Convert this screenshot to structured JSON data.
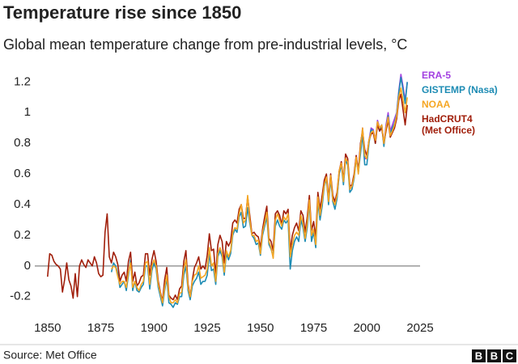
{
  "chart_data": {
    "type": "line",
    "title": "Temperature rise since 1850",
    "subtitle": "Global mean temperature change from pre-industrial levels, °C",
    "source": "Source: Met Office",
    "logo": [
      "B",
      "B",
      "C"
    ],
    "xlim": [
      1844,
      2025
    ],
    "xticks": [
      1850,
      1875,
      1900,
      1925,
      1950,
      1975,
      2000,
      2025
    ],
    "ylim": [
      -0.27,
      1.26
    ],
    "yticks": [
      -0.2,
      0,
      0.2,
      0.4,
      0.6,
      0.8,
      1,
      1.2
    ],
    "grid": false,
    "x": [
      1850,
      1851,
      1852,
      1853,
      1854,
      1855,
      1856,
      1857,
      1858,
      1859,
      1860,
      1861,
      1862,
      1863,
      1864,
      1865,
      1866,
      1867,
      1868,
      1869,
      1870,
      1871,
      1872,
      1873,
      1874,
      1875,
      1876,
      1877,
      1878,
      1879,
      1880,
      1881,
      1882,
      1883,
      1884,
      1885,
      1886,
      1887,
      1888,
      1889,
      1890,
      1891,
      1892,
      1893,
      1894,
      1895,
      1896,
      1897,
      1898,
      1899,
      1900,
      1901,
      1902,
      1903,
      1904,
      1905,
      1906,
      1907,
      1908,
      1909,
      1910,
      1911,
      1912,
      1913,
      1914,
      1915,
      1916,
      1917,
      1918,
      1919,
      1920,
      1921,
      1922,
      1923,
      1924,
      1925,
      1926,
      1927,
      1928,
      1929,
      1930,
      1931,
      1932,
      1933,
      1934,
      1935,
      1936,
      1937,
      1938,
      1939,
      1940,
      1941,
      1942,
      1943,
      1944,
      1945,
      1946,
      1947,
      1948,
      1949,
      1950,
      1951,
      1952,
      1953,
      1954,
      1955,
      1956,
      1957,
      1958,
      1959,
      1960,
      1961,
      1962,
      1963,
      1964,
      1965,
      1966,
      1967,
      1968,
      1969,
      1970,
      1971,
      1972,
      1973,
      1974,
      1975,
      1976,
      1977,
      1978,
      1979,
      1980,
      1981,
      1982,
      1983,
      1984,
      1985,
      1986,
      1987,
      1988,
      1989,
      1990,
      1991,
      1992,
      1993,
      1994,
      1995,
      1996,
      1997,
      1998,
      1999,
      2000,
      2001,
      2002,
      2003,
      2004,
      2005,
      2006,
      2007,
      2008,
      2009,
      2010,
      2011,
      2012,
      2013,
      2014,
      2015,
      2016,
      2017,
      2018,
      2019
    ],
    "series": [
      {
        "name": "ERA-5",
        "color": "#a341e1",
        "values": [
          null,
          null,
          null,
          null,
          null,
          null,
          null,
          null,
          null,
          null,
          null,
          null,
          null,
          null,
          null,
          null,
          null,
          null,
          null,
          null,
          null,
          null,
          null,
          null,
          null,
          null,
          null,
          null,
          null,
          null,
          null,
          null,
          null,
          null,
          null,
          null,
          null,
          null,
          null,
          null,
          null,
          null,
          null,
          null,
          null,
          null,
          null,
          null,
          null,
          null,
          null,
          null,
          null,
          null,
          null,
          null,
          null,
          null,
          null,
          null,
          null,
          null,
          null,
          null,
          null,
          null,
          null,
          null,
          null,
          null,
          null,
          null,
          null,
          null,
          null,
          null,
          null,
          null,
          null,
          null,
          null,
          null,
          null,
          null,
          null,
          null,
          null,
          null,
          null,
          null,
          null,
          null,
          null,
          null,
          null,
          null,
          null,
          null,
          null,
          null,
          null,
          null,
          null,
          null,
          null,
          null,
          null,
          null,
          null,
          null,
          null,
          null,
          null,
          null,
          null,
          null,
          null,
          null,
          null,
          null,
          null,
          null,
          null,
          null,
          null,
          null,
          null,
          null,
          null,
          0.42,
          0.54,
          0.58,
          0.42,
          0.6,
          0.42,
          0.4,
          0.45,
          0.6,
          0.68,
          0.55,
          0.7,
          0.68,
          0.5,
          0.52,
          0.58,
          0.72,
          0.62,
          0.78,
          0.9,
          0.7,
          0.7,
          0.82,
          0.9,
          0.89,
          0.82,
          0.95,
          0.9,
          0.92,
          0.8,
          0.92,
          1.0,
          0.88,
          0.92,
          0.96,
          1.0,
          1.14,
          1.25,
          1.17,
          1.08,
          1.2
        ]
      },
      {
        "name": "GISTEMP (Nasa)",
        "color": "#1e8cb4",
        "values": [
          null,
          null,
          null,
          null,
          null,
          null,
          null,
          null,
          null,
          null,
          null,
          null,
          null,
          null,
          null,
          null,
          null,
          null,
          null,
          null,
          null,
          null,
          null,
          null,
          null,
          null,
          null,
          null,
          null,
          null,
          -0.04,
          0.02,
          0.0,
          -0.05,
          -0.14,
          -0.12,
          -0.1,
          -0.16,
          -0.06,
          0.04,
          -0.16,
          -0.1,
          -0.16,
          -0.17,
          -0.14,
          -0.12,
          0.0,
          0.0,
          -0.15,
          -0.03,
          0.02,
          -0.02,
          -0.14,
          -0.2,
          -0.26,
          -0.16,
          -0.08,
          -0.24,
          -0.25,
          -0.27,
          -0.24,
          -0.25,
          -0.2,
          -0.2,
          -0.06,
          0.0,
          -0.16,
          -0.22,
          -0.13,
          -0.1,
          -0.08,
          -0.04,
          -0.12,
          -0.1,
          -0.1,
          -0.06,
          0.08,
          -0.03,
          -0.02,
          -0.12,
          0.06,
          0.1,
          0.06,
          -0.06,
          0.08,
          0.04,
          0.08,
          0.2,
          0.24,
          0.22,
          0.32,
          0.35,
          0.25,
          0.26,
          0.38,
          0.28,
          0.2,
          0.18,
          0.14,
          0.15,
          0.07,
          0.2,
          0.26,
          0.32,
          0.14,
          0.11,
          0.06,
          0.26,
          0.3,
          0.26,
          0.24,
          0.3,
          0.28,
          0.3,
          -0.02,
          0.1,
          0.16,
          0.19,
          0.16,
          0.3,
          0.25,
          0.16,
          0.25,
          0.41,
          0.16,
          0.22,
          0.12,
          0.42,
          0.3,
          0.39,
          0.52,
          0.57,
          0.4,
          0.57,
          0.42,
          0.37,
          0.44,
          0.6,
          0.66,
          0.53,
          0.69,
          0.66,
          0.48,
          0.5,
          0.57,
          0.7,
          0.61,
          0.73,
          0.86,
          0.66,
          0.66,
          0.8,
          0.89,
          0.88,
          0.8,
          0.94,
          0.88,
          0.92,
          0.78,
          0.9,
          0.98,
          0.86,
          0.9,
          0.93,
          0.99,
          1.13,
          1.23,
          1.15,
          1.06,
          1.2
        ]
      },
      {
        "name": "NOAA",
        "color": "#f5a623",
        "values": [
          null,
          null,
          null,
          null,
          null,
          null,
          null,
          null,
          null,
          null,
          null,
          null,
          null,
          null,
          null,
          null,
          null,
          null,
          null,
          null,
          null,
          null,
          null,
          null,
          null,
          null,
          null,
          null,
          null,
          null,
          -0.02,
          0.0,
          -0.01,
          -0.07,
          -0.12,
          -0.1,
          -0.1,
          -0.14,
          -0.04,
          0.02,
          -0.14,
          -0.1,
          -0.14,
          -0.16,
          -0.12,
          -0.1,
          0.02,
          0.03,
          -0.12,
          0.0,
          0.04,
          0.0,
          -0.12,
          -0.18,
          -0.24,
          -0.14,
          -0.06,
          -0.2,
          -0.24,
          -0.24,
          -0.22,
          -0.24,
          -0.18,
          -0.17,
          -0.02,
          0.04,
          -0.14,
          -0.2,
          -0.1,
          -0.06,
          -0.05,
          0.0,
          -0.08,
          -0.07,
          -0.06,
          -0.02,
          0.12,
          0.0,
          0.02,
          -0.1,
          0.08,
          0.12,
          0.08,
          -0.04,
          0.1,
          0.06,
          0.1,
          0.22,
          0.25,
          0.24,
          0.34,
          0.4,
          0.28,
          0.3,
          0.46,
          0.3,
          0.2,
          0.2,
          0.16,
          0.17,
          0.08,
          0.22,
          0.28,
          0.35,
          0.16,
          0.12,
          0.05,
          0.3,
          0.34,
          0.3,
          0.26,
          0.32,
          0.3,
          0.34,
          0.06,
          0.14,
          0.2,
          0.22,
          0.2,
          0.33,
          0.28,
          0.18,
          0.28,
          0.43,
          0.2,
          0.24,
          0.14,
          0.45,
          0.33,
          0.42,
          0.53,
          0.58,
          0.42,
          0.59,
          0.43,
          0.4,
          0.46,
          0.62,
          0.67,
          0.55,
          0.7,
          0.68,
          0.5,
          0.52,
          0.58,
          0.71,
          0.6,
          0.78,
          0.9,
          0.72,
          0.7,
          0.82,
          0.87,
          0.88,
          0.82,
          0.94,
          0.9,
          0.92,
          0.8,
          0.9,
          0.97,
          0.85,
          0.88,
          0.92,
          0.98,
          1.1,
          1.16,
          1.08,
          1.0,
          1.1
        ]
      },
      {
        "name": "HadCRUT4 (Met Office)",
        "color": "#a01e0a",
        "values": [
          -0.07,
          0.08,
          0.07,
          0.03,
          0.01,
          0.0,
          -0.02,
          -0.17,
          -0.09,
          0.02,
          -0.09,
          -0.13,
          -0.21,
          -0.05,
          -0.2,
          0.0,
          0.04,
          0.01,
          -0.01,
          0.04,
          0.02,
          0.0,
          0.06,
          0.02,
          -0.05,
          -0.07,
          -0.06,
          0.22,
          0.34,
          0.06,
          0.02,
          0.09,
          0.06,
          0.01,
          -0.1,
          -0.06,
          -0.04,
          -0.1,
          0.03,
          0.09,
          -0.1,
          -0.04,
          -0.13,
          -0.11,
          -0.07,
          -0.06,
          0.08,
          0.08,
          -0.06,
          0.04,
          0.1,
          0.03,
          -0.1,
          -0.17,
          -0.23,
          -0.09,
          -0.01,
          -0.19,
          -0.21,
          -0.22,
          -0.19,
          -0.22,
          -0.15,
          -0.13,
          0.03,
          0.1,
          -0.12,
          -0.2,
          -0.09,
          -0.01,
          0.02,
          0.06,
          -0.02,
          0.0,
          -0.02,
          0.07,
          0.21,
          0.1,
          0.11,
          -0.06,
          0.14,
          0.2,
          0.16,
          0.02,
          0.16,
          0.13,
          0.16,
          0.28,
          0.3,
          0.28,
          0.37,
          0.4,
          0.31,
          0.31,
          0.45,
          0.33,
          0.21,
          0.22,
          0.2,
          0.19,
          0.12,
          0.24,
          0.32,
          0.39,
          0.18,
          0.16,
          0.1,
          0.34,
          0.36,
          0.33,
          0.27,
          0.36,
          0.34,
          0.37,
          0.1,
          0.2,
          0.25,
          0.28,
          0.23,
          0.36,
          0.33,
          0.22,
          0.32,
          0.46,
          0.23,
          0.29,
          0.19,
          0.48,
          0.37,
          0.46,
          0.56,
          0.6,
          0.44,
          0.6,
          0.46,
          0.42,
          0.48,
          0.62,
          0.68,
          0.56,
          0.73,
          0.7,
          0.52,
          0.53,
          0.6,
          0.72,
          0.62,
          0.8,
          0.88,
          0.76,
          0.72,
          0.82,
          0.86,
          0.87,
          0.8,
          0.92,
          0.88,
          0.9,
          0.8,
          0.88,
          0.95,
          0.84,
          0.87,
          0.9,
          0.96,
          1.08,
          1.12,
          1.02,
          0.92,
          1.05
        ]
      }
    ]
  }
}
